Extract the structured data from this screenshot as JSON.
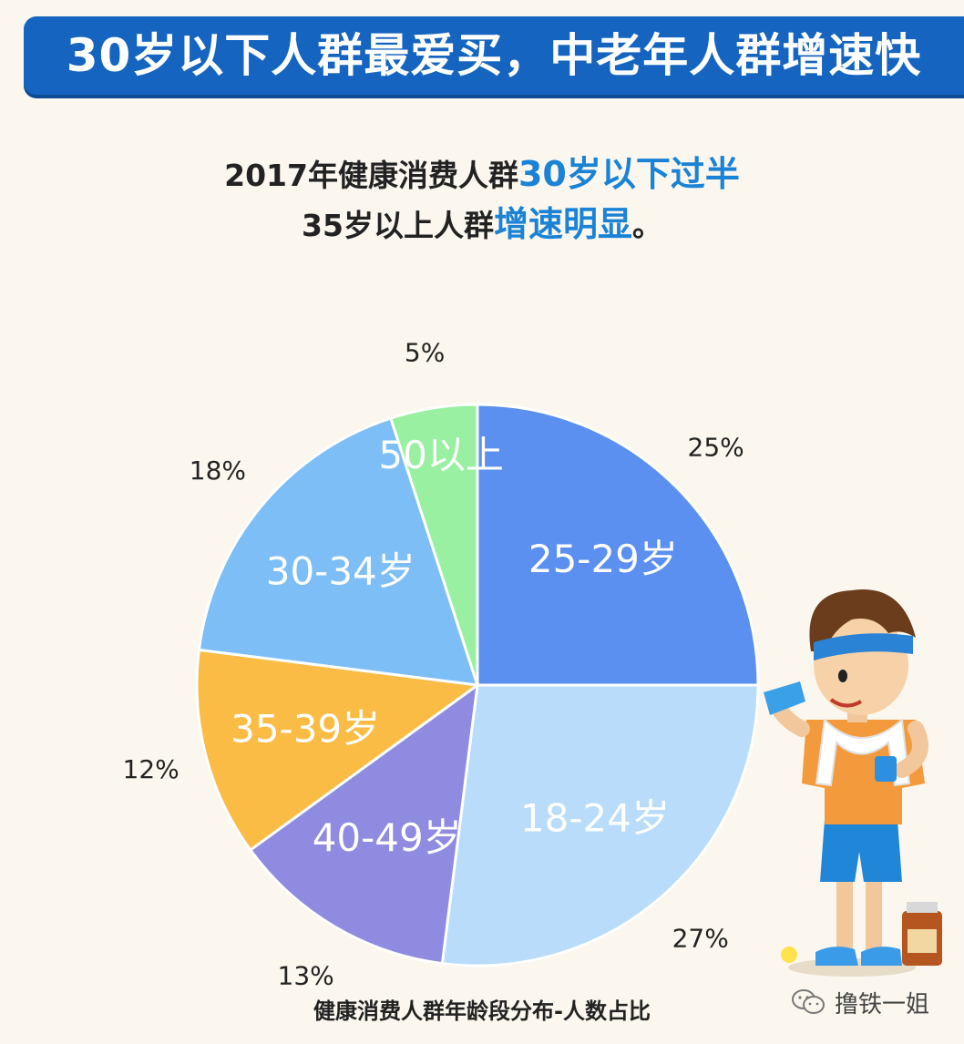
{
  "banner": {
    "title": "30岁以下人群最爱买，中老年人群增速快"
  },
  "subtitle": {
    "line1_pre": "2017年健康消费人群",
    "line1_highlight": "30岁以下过半",
    "line2_pre": "35岁以上人群",
    "line2_highlight": "增速明显",
    "line2_post": "。"
  },
  "colors": {
    "banner": "#1565c0",
    "highlight": "#1a83d6",
    "background": "#fbf7ee"
  },
  "chart_data": {
    "type": "pie",
    "title": "健康消费人群年龄段分布-人数占比",
    "start_angle_deg": 0,
    "direction": "clockwise",
    "slices": [
      {
        "label": "25-29岁",
        "value": 25,
        "value_label": "25%",
        "color": "#5b8ff0"
      },
      {
        "label": "18-24岁",
        "value": 27,
        "value_label": "27%",
        "color": "#b8dcfa"
      },
      {
        "label": "40-49岁",
        "value": 13,
        "value_label": "13%",
        "color": "#8e8be0"
      },
      {
        "label": "35-39岁",
        "value": 12,
        "value_label": "12%",
        "color": "#fbbc45"
      },
      {
        "label": "30-34岁",
        "value": 18,
        "value_label": "18%",
        "color": "#7cbef5"
      },
      {
        "label": "50以上",
        "value": 5,
        "value_label": "5%",
        "color": "#98f0a0"
      }
    ]
  },
  "watermark": {
    "account": "撸铁一姐"
  },
  "icons": {
    "wechat": "wechat-icon",
    "mascot": "runner-mascot-icon"
  }
}
